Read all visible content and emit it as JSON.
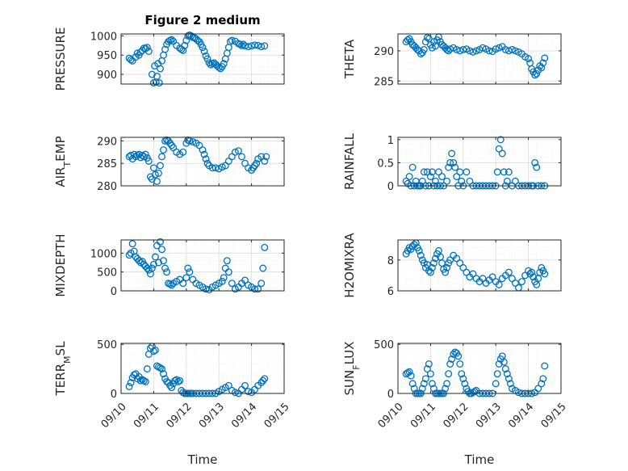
{
  "chart_data": [
    {
      "type": "scatter",
      "ylabel": "PRESSURE",
      "title": "Figure 2 medium",
      "ylim": [
        875,
        1005
      ],
      "yticks": [
        900,
        950,
        1000
      ],
      "xticks_visible": false,
      "x": [
        0.25,
        0.3,
        0.35,
        0.45,
        0.5,
        0.55,
        0.6,
        0.65,
        0.7,
        0.75,
        0.8,
        0.85,
        0.95,
        1.0,
        1.03,
        1.07,
        1.1,
        1.13,
        1.17,
        1.2,
        1.25,
        1.3,
        1.35,
        1.4,
        1.45,
        1.5,
        1.55,
        1.6,
        1.7,
        1.8,
        1.85,
        1.9,
        1.95,
        2.0,
        2.05,
        2.1,
        2.15,
        2.2,
        2.25,
        2.3,
        2.35,
        2.4,
        2.45,
        2.5,
        2.55,
        2.6,
        2.65,
        2.7,
        2.75,
        2.8,
        2.85,
        2.9,
        2.95,
        3.0,
        3.05,
        3.1,
        3.15,
        3.2,
        3.25,
        3.3,
        3.35,
        3.4,
        3.5,
        3.6,
        3.65,
        3.7,
        3.75,
        3.8,
        3.9,
        4.0,
        4.1,
        4.2,
        4.3,
        4.4
      ],
      "values": [
        942,
        938,
        935,
        945,
        955,
        950,
        958,
        962,
        968,
        967,
        970,
        960,
        900,
        878,
        922,
        880,
        895,
        928,
        878,
        915,
        935,
        950,
        965,
        978,
        985,
        988,
        990,
        986,
        975,
        968,
        965,
        962,
        975,
        988,
        1000,
        1002,
        1000,
        996,
        995,
        992,
        988,
        985,
        978,
        970,
        960,
        948,
        940,
        930,
        925,
        928,
        930,
        926,
        922,
        918,
        915,
        920,
        928,
        940,
        955,
        970,
        985,
        988,
        986,
        980,
        978,
        975,
        978,
        974,
        972,
        974,
        976,
        975,
        972,
        974
      ]
    },
    {
      "type": "scatter",
      "ylabel": "THETA",
      "ylim": [
        284.5,
        292.8
      ],
      "yticks": [
        285,
        290
      ],
      "xticks_visible": false,
      "x": [
        0.25,
        0.3,
        0.35,
        0.4,
        0.45,
        0.5,
        0.55,
        0.6,
        0.65,
        0.7,
        0.75,
        0.8,
        0.85,
        0.9,
        0.95,
        1.0,
        1.05,
        1.1,
        1.15,
        1.2,
        1.25,
        1.3,
        1.35,
        1.4,
        1.45,
        1.5,
        1.55,
        1.6,
        1.7,
        1.8,
        1.9,
        2.0,
        2.1,
        2.2,
        2.3,
        2.4,
        2.5,
        2.6,
        2.7,
        2.8,
        2.9,
        3.0,
        3.1,
        3.2,
        3.3,
        3.4,
        3.5,
        3.6,
        3.7,
        3.8,
        3.9,
        4.0,
        4.05,
        4.1,
        4.15,
        4.2,
        4.25,
        4.3,
        4.35,
        4.4,
        4.45,
        4.5
      ],
      "values": [
        291.5,
        291.8,
        292.0,
        291.5,
        291.0,
        290.8,
        290.5,
        290.2,
        290.0,
        289.5,
        289.7,
        290.2,
        291.5,
        292.2,
        292.0,
        291.0,
        290.5,
        291.5,
        290.8,
        291.8,
        292.3,
        291.5,
        291.0,
        290.8,
        290.5,
        290.2,
        290.0,
        290.3,
        290.5,
        290.2,
        290.0,
        290.2,
        290.3,
        290.0,
        289.8,
        290.0,
        290.2,
        290.5,
        290.3,
        290.0,
        289.9,
        290.3,
        290.5,
        290.7,
        290.2,
        290.0,
        290.2,
        290.0,
        289.8,
        289.5,
        289.0,
        288.7,
        288.0,
        287.0,
        286.5,
        286.0,
        286.2,
        286.8,
        287.5,
        287.2,
        288.0,
        288.8
      ]
    },
    {
      "type": "scatter",
      "ylabel": "AIR_TEMP",
      "ylim": [
        280,
        290.8
      ],
      "yticks": [
        280,
        285,
        290
      ],
      "xticks_visible": false,
      "x": [
        0.25,
        0.3,
        0.35,
        0.4,
        0.45,
        0.5,
        0.55,
        0.6,
        0.65,
        0.7,
        0.75,
        0.8,
        0.85,
        0.9,
        0.95,
        1.0,
        1.05,
        1.1,
        1.15,
        1.2,
        1.25,
        1.3,
        1.35,
        1.4,
        1.45,
        1.5,
        1.55,
        1.6,
        1.7,
        1.8,
        1.9,
        2.0,
        2.05,
        2.1,
        2.2,
        2.3,
        2.4,
        2.5,
        2.55,
        2.6,
        2.65,
        2.7,
        2.8,
        2.9,
        3.0,
        3.1,
        3.2,
        3.3,
        3.4,
        3.5,
        3.6,
        3.7,
        3.8,
        3.9,
        4.0,
        4.05,
        4.1,
        4.15,
        4.2,
        4.3,
        4.4,
        4.45
      ],
      "values": [
        286.5,
        286.8,
        286.0,
        287.0,
        286.5,
        286.8,
        287.0,
        286.3,
        286.8,
        286.5,
        287.0,
        286.2,
        285.5,
        282.0,
        281.5,
        284.0,
        282.5,
        281.0,
        282.8,
        284.5,
        286.5,
        288.0,
        290.0,
        290.2,
        290.0,
        289.5,
        289.0,
        288.5,
        287.5,
        287.0,
        287.5,
        289.5,
        290.2,
        290.0,
        289.8,
        289.5,
        289.0,
        288.0,
        287.0,
        286.0,
        285.0,
        284.5,
        284.0,
        284.0,
        283.8,
        284.2,
        284.5,
        285.5,
        286.5,
        287.5,
        287.8,
        286.5,
        285.0,
        284.0,
        283.5,
        284.0,
        284.5,
        285.0,
        286.0,
        286.5,
        285.5,
        286.5
      ]
    },
    {
      "type": "scatter",
      "ylabel": "RAINFALL",
      "ylim": [
        0,
        1.05
      ],
      "yticks": [
        0,
        0.5,
        1
      ],
      "xticks_visible": false,
      "x": [
        0.25,
        0.3,
        0.35,
        0.4,
        0.45,
        0.5,
        0.55,
        0.6,
        0.65,
        0.7,
        0.75,
        0.8,
        0.85,
        0.9,
        0.95,
        1.0,
        1.05,
        1.1,
        1.15,
        1.2,
        1.25,
        1.3,
        1.35,
        1.4,
        1.5,
        1.55,
        1.6,
        1.65,
        1.7,
        1.75,
        1.8,
        1.85,
        1.9,
        1.95,
        2.0,
        2.1,
        2.2,
        2.3,
        2.4,
        2.5,
        2.6,
        2.7,
        2.8,
        2.9,
        3.0,
        3.05,
        3.1,
        3.15,
        3.2,
        3.25,
        3.3,
        3.35,
        3.4,
        3.5,
        3.6,
        3.7,
        3.8,
        3.9,
        4.0,
        4.1,
        4.15,
        4.2,
        4.25,
        4.3,
        4.4,
        4.5
      ],
      "values": [
        0.1,
        0.05,
        0.2,
        0.0,
        0.4,
        0.0,
        0.1,
        0.0,
        0.0,
        0.0,
        0.1,
        0.3,
        0.0,
        0.3,
        0.0,
        0.2,
        0.3,
        0.0,
        0.1,
        0.0,
        0.3,
        0.0,
        0.2,
        0.0,
        0.1,
        0.4,
        0.5,
        0.7,
        0.5,
        0.4,
        0.2,
        0.0,
        0.3,
        0.1,
        0.0,
        0.3,
        0.1,
        0.0,
        0.0,
        0.0,
        0.0,
        0.0,
        0.0,
        0.0,
        0.0,
        0.3,
        0.8,
        1.0,
        0.7,
        0.3,
        0.0,
        0.1,
        0.3,
        0.0,
        0.1,
        0.0,
        0.0,
        0.0,
        0.0,
        0.0,
        0.0,
        0.5,
        0.4,
        0.0,
        0.0,
        0.0
      ]
    },
    {
      "type": "scatter",
      "ylabel": "MIXDEPTH",
      "ylim": [
        0,
        1350
      ],
      "yticks": [
        0,
        500,
        1000
      ],
      "xticks_visible": false,
      "x": [
        0.25,
        0.3,
        0.35,
        0.4,
        0.45,
        0.5,
        0.55,
        0.6,
        0.65,
        0.7,
        0.75,
        0.8,
        0.85,
        0.9,
        0.95,
        1.0,
        1.05,
        1.1,
        1.15,
        1.2,
        1.25,
        1.3,
        1.35,
        1.4,
        1.45,
        1.5,
        1.55,
        1.6,
        1.7,
        1.8,
        1.9,
        2.0,
        2.05,
        2.1,
        2.2,
        2.3,
        2.4,
        2.5,
        2.6,
        2.7,
        2.8,
        2.9,
        3.0,
        3.1,
        3.15,
        3.2,
        3.25,
        3.3,
        3.4,
        3.5,
        3.6,
        3.7,
        3.8,
        3.9,
        4.0,
        4.1,
        4.2,
        4.3,
        4.35,
        4.4
      ],
      "values": [
        950,
        1000,
        1250,
        1050,
        900,
        850,
        800,
        750,
        780,
        700,
        650,
        600,
        550,
        450,
        600,
        700,
        900,
        1200,
        750,
        1300,
        1100,
        800,
        600,
        500,
        200,
        180,
        150,
        200,
        250,
        300,
        200,
        350,
        600,
        500,
        300,
        200,
        150,
        100,
        50,
        30,
        100,
        150,
        200,
        250,
        350,
        600,
        800,
        500,
        200,
        50,
        100,
        200,
        280,
        150,
        100,
        50,
        50,
        200,
        600,
        1150
      ]
    },
    {
      "type": "scatter",
      "ylabel": "H2OMIXRA",
      "ylim": [
        6,
        9.3
      ],
      "yticks": [
        6,
        8
      ],
      "xticks_visible": false,
      "x": [
        0.25,
        0.3,
        0.35,
        0.4,
        0.45,
        0.5,
        0.55,
        0.6,
        0.65,
        0.7,
        0.75,
        0.8,
        0.85,
        0.9,
        0.95,
        1.0,
        1.05,
        1.1,
        1.15,
        1.2,
        1.25,
        1.3,
        1.35,
        1.4,
        1.45,
        1.5,
        1.55,
        1.6,
        1.7,
        1.8,
        1.9,
        2.0,
        2.1,
        2.2,
        2.3,
        2.4,
        2.5,
        2.6,
        2.7,
        2.8,
        2.9,
        3.0,
        3.1,
        3.2,
        3.3,
        3.4,
        3.5,
        3.6,
        3.7,
        3.8,
        3.9,
        4.0,
        4.05,
        4.1,
        4.15,
        4.2,
        4.25,
        4.3,
        4.35,
        4.4,
        4.45,
        4.5
      ],
      "values": [
        8.4,
        8.6,
        8.8,
        8.7,
        8.9,
        9.0,
        9.1,
        8.8,
        8.6,
        8.3,
        8.0,
        7.8,
        7.5,
        7.7,
        7.3,
        7.2,
        7.5,
        7.8,
        8.1,
        8.4,
        8.6,
        8.2,
        7.8,
        7.4,
        7.2,
        7.5,
        7.8,
        8.0,
        8.3,
        8.1,
        7.8,
        7.5,
        7.2,
        6.9,
        7.1,
        6.8,
        6.6,
        6.8,
        6.5,
        6.7,
        6.9,
        6.6,
        6.4,
        6.8,
        7.0,
        7.2,
        6.8,
        6.5,
        6.2,
        6.6,
        7.0,
        7.3,
        7.1,
        7.2,
        6.9,
        6.6,
        6.4,
        6.8,
        7.2,
        7.5,
        7.3,
        7.1
      ]
    },
    {
      "type": "scatter",
      "ylabel": "TERR_MSL",
      "ylim": [
        0,
        510
      ],
      "yticks": [
        0,
        500
      ],
      "xticks_visible": true,
      "x": [
        0.25,
        0.3,
        0.35,
        0.4,
        0.45,
        0.5,
        0.55,
        0.6,
        0.65,
        0.7,
        0.75,
        0.8,
        0.85,
        0.9,
        0.95,
        1.0,
        1.05,
        1.1,
        1.15,
        1.2,
        1.25,
        1.3,
        1.35,
        1.4,
        1.45,
        1.5,
        1.55,
        1.6,
        1.65,
        1.7,
        1.75,
        1.8,
        1.85,
        1.9,
        1.95,
        2.0,
        2.05,
        2.1,
        2.15,
        2.2,
        2.3,
        2.4,
        2.5,
        2.6,
        2.7,
        2.8,
        2.9,
        3.0,
        3.1,
        3.2,
        3.3,
        3.4,
        3.5,
        3.6,
        3.7,
        3.8,
        3.9,
        4.0,
        4.1,
        4.2,
        4.3,
        4.35,
        4.4
      ],
      "values": [
        70,
        110,
        160,
        190,
        200,
        150,
        170,
        130,
        140,
        130,
        120,
        250,
        400,
        460,
        480,
        430,
        440,
        280,
        270,
        260,
        250,
        200,
        150,
        120,
        110,
        80,
        60,
        100,
        130,
        140,
        120,
        130,
        30,
        10,
        0,
        0,
        0,
        0,
        0,
        0,
        0,
        0,
        0,
        0,
        0,
        0,
        0,
        20,
        40,
        60,
        80,
        30,
        10,
        0,
        40,
        80,
        20,
        10,
        40,
        80,
        110,
        130,
        150
      ]
    },
    {
      "type": "scatter",
      "ylabel": "SUN_FLUX",
      "ylim": [
        0,
        510
      ],
      "yticks": [
        0,
        500
      ],
      "xticks_visible": true,
      "x": [
        0.25,
        0.3,
        0.35,
        0.4,
        0.45,
        0.5,
        0.55,
        0.6,
        0.65,
        0.7,
        0.75,
        0.8,
        0.85,
        0.9,
        0.95,
        1.0,
        1.05,
        1.1,
        1.15,
        1.2,
        1.25,
        1.3,
        1.35,
        1.4,
        1.45,
        1.5,
        1.55,
        1.6,
        1.65,
        1.7,
        1.75,
        1.8,
        1.85,
        1.9,
        1.95,
        2.0,
        2.05,
        2.1,
        2.15,
        2.2,
        2.25,
        2.3,
        2.35,
        2.4,
        2.5,
        2.6,
        2.7,
        2.8,
        2.9,
        3.0,
        3.05,
        3.1,
        3.15,
        3.2,
        3.25,
        3.3,
        3.35,
        3.4,
        3.45,
        3.5,
        3.6,
        3.7,
        3.8,
        3.9,
        4.0,
        4.1,
        4.2,
        4.3,
        4.4,
        4.45,
        4.5
      ],
      "values": [
        200,
        210,
        220,
        180,
        100,
        50,
        0,
        0,
        0,
        0,
        50,
        100,
        150,
        250,
        300,
        200,
        100,
        50,
        0,
        0,
        0,
        0,
        0,
        0,
        50,
        100,
        200,
        300,
        350,
        400,
        420,
        410,
        380,
        300,
        200,
        150,
        100,
        50,
        20,
        0,
        0,
        10,
        20,
        30,
        0,
        0,
        0,
        0,
        0,
        100,
        200,
        300,
        350,
        380,
        320,
        250,
        200,
        150,
        100,
        50,
        30,
        10,
        0,
        0,
        0,
        0,
        10,
        50,
        100,
        150,
        280
      ]
    }
  ],
  "xaxis": {
    "tick_labels": [
      "09/10",
      "09/11",
      "09/12",
      "09/13",
      "09/14",
      "09/15"
    ],
    "label": "Time",
    "xlim": [
      0,
      5
    ]
  },
  "colors": {
    "marker": "#0072bd",
    "grid_major": "#dcdcdc",
    "grid_minor": "#ebebeb",
    "axis": "#262626"
  }
}
